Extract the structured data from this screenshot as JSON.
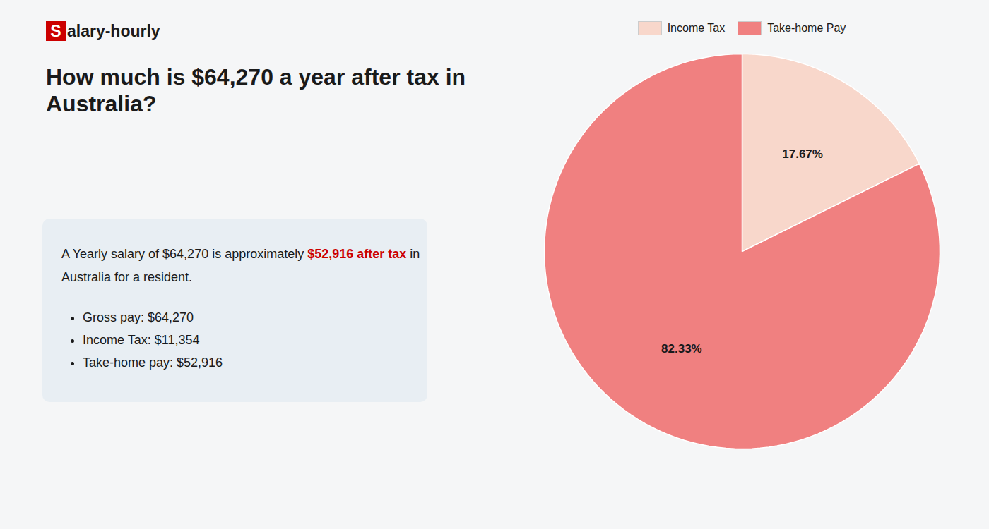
{
  "chart_data": {
    "type": "pie",
    "title": "How much is $64,270 a year after tax in\nAustralia?",
    "categories": [
      "Income Tax",
      "Take-home Pay"
    ],
    "values": [
      17.67,
      82.33
    ],
    "value_labels": [
      "17.67%",
      "82.33%"
    ],
    "colors": [
      "#f8d7cb",
      "#f08080"
    ],
    "data_labels": true,
    "legend": "top",
    "annotations": [
      [
        {
          "text": "S",
          "color": "#cc0000"
        },
        {
          "text": "alary-hourly"
        }
      ],
      [
        {
          "text": "A Yearly salary of $64,270 is approximately "
        },
        {
          "text": "$52,916 after tax",
          "color": "#cc0000"
        },
        {
          "text": " in"
        }
      ],
      [
        {
          "text": "Australia for a resident."
        }
      ],
      [
        {
          "text": "Gross pay: $64,270"
        }
      ],
      [
        {
          "text": "Income Tax: $11,354"
        }
      ],
      [
        {
          "text": "Take-home pay: $52,916"
        }
      ]
    ]
  }
}
